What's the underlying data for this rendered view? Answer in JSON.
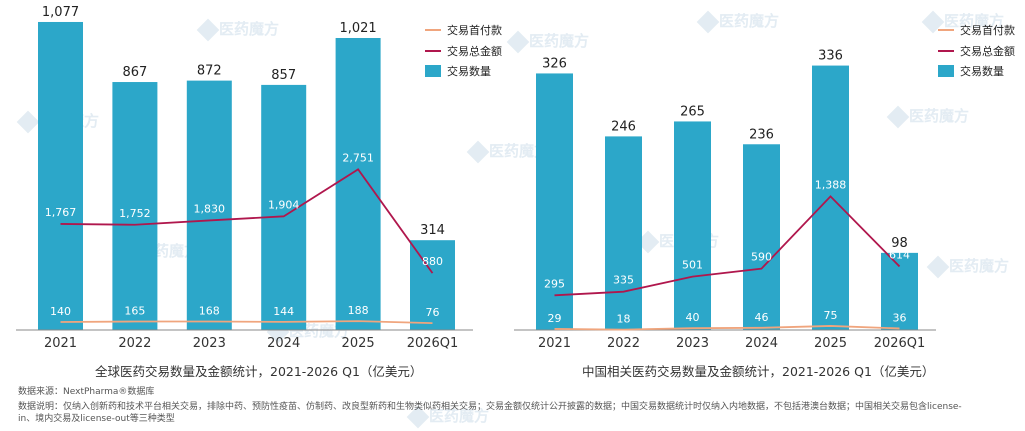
{
  "colors": {
    "bar": "#2ca7c9",
    "total_line": "#b0174d",
    "upfront_line": "#f0a57d"
  },
  "legend": [
    "交易首付款",
    "交易总金额",
    "交易数量"
  ],
  "captions": {
    "left": "全球医药交易数量及金额统计，2021-2026 Q1（亿美元）",
    "right": "中国相关医药交易数量及金额统计，2021-2026 Q1（亿美元）"
  },
  "notes": {
    "source": "数据来源：NextPharma®数据库",
    "desc": "数据说明：仅纳入创新药和技术平台相关交易，排除中药、预防性疫苗、仿制药、改良型新药和生物类似药相关交易；交易金额仅统计公开披露的数据；中国交易数据统计时仅纳入内地数据，不包括港澳台数据；中国相关交易包含license-",
    "desc2": "in、境内交易及license-out等三种类型"
  },
  "watermark": {
    "brand": "医药魔方",
    "sub": "PHARMCUBE"
  },
  "chart_data": [
    {
      "type": "bar",
      "categories": [
        "2021",
        "2022",
        "2023",
        "2024",
        "2025",
        "2026Q1"
      ],
      "series": [
        {
          "name": "交易数量",
          "type": "bar",
          "values": [
            1077,
            867,
            872,
            857,
            1021,
            314
          ],
          "labels": [
            "1,077",
            "867",
            "872",
            "857",
            "1,021",
            "314"
          ]
        },
        {
          "name": "交易总金额",
          "type": "line",
          "values": [
            1767,
            1752,
            1830,
            1904,
            2751,
            880
          ],
          "labels": [
            "1,767",
            "1,752",
            "1,830",
            "1,904",
            "2,751",
            "880"
          ]
        },
        {
          "name": "交易首付款",
          "type": "line",
          "values": [
            140,
            165,
            168,
            144,
            188,
            76
          ],
          "labels": [
            "140",
            "165",
            "168",
            "144",
            "188",
            "76"
          ]
        }
      ],
      "title": "全球医药交易数量及金额统计，2021-2026 Q1（亿美元）"
    },
    {
      "type": "bar",
      "categories": [
        "2021",
        "2022",
        "2023",
        "2024",
        "2025",
        "2026Q1"
      ],
      "series": [
        {
          "name": "交易数量",
          "type": "bar",
          "values": [
            326,
            246,
            265,
            236,
            336,
            98
          ],
          "labels": [
            "326",
            "246",
            "265",
            "236",
            "336",
            "98"
          ]
        },
        {
          "name": "交易总金额",
          "type": "line",
          "values": [
            295,
            335,
            501,
            590,
            1388,
            614
          ],
          "labels": [
            "295",
            "335",
            "501",
            "590",
            "1,388",
            "614"
          ]
        },
        {
          "name": "交易首付款",
          "type": "line",
          "values": [
            29,
            18,
            40,
            46,
            75,
            36
          ],
          "labels": [
            "29",
            "18",
            "40",
            "46",
            "75",
            "36"
          ]
        }
      ],
      "title": "中国相关医药交易数量及金额统计，2021-2026 Q1（亿美元）"
    }
  ]
}
